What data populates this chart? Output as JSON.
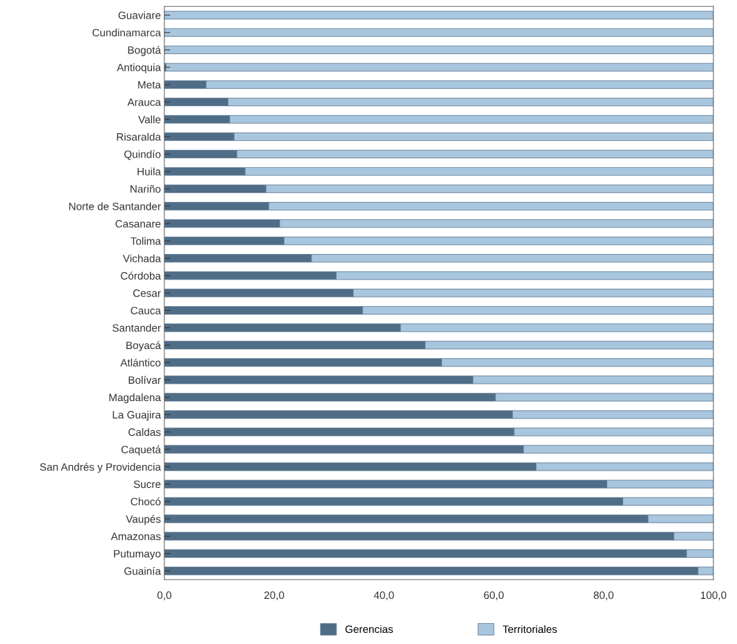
{
  "chart_data": {
    "type": "bar",
    "orientation": "horizontal",
    "stacked": true,
    "categories": [
      "Guaviare",
      "Cundinamarca",
      "Bogotá",
      "Antioquia",
      "Meta",
      "Arauca",
      "Valle",
      "Risaralda",
      "Quindío",
      "Huila",
      "Nariño",
      "Norte de Santander",
      "Casanare",
      "Tolima",
      "Vichada",
      "Córdoba",
      "Cesar",
      "Cauca",
      "Santander",
      "Boyacá",
      "Atlántico",
      "Bolívar",
      "Magdalena",
      "La Guajira",
      "Caldas",
      "Caquetá",
      "San Andrés y Providencia",
      "Sucre",
      "Chocó",
      "Vaupés",
      "Amazonas",
      "Putumayo",
      "Guainía"
    ],
    "series": [
      {
        "name": "Gerencias",
        "color": "#4f6d87",
        "values": [
          0,
          0,
          0,
          0.3,
          7.6,
          11.6,
          11.9,
          12.7,
          13.2,
          14.7,
          18.5,
          19.0,
          21.0,
          21.8,
          26.8,
          31.3,
          34.4,
          36.1,
          43.0,
          47.5,
          50.5,
          56.2,
          60.3,
          63.4,
          63.7,
          65.4,
          67.7,
          80.6,
          83.5,
          88.1,
          92.8,
          95.1,
          97.2
        ]
      },
      {
        "name": "Territoriales",
        "color": "#a8c6de",
        "values": [
          100,
          100,
          100,
          99.7,
          92.4,
          88.4,
          88.1,
          87.3,
          86.8,
          85.3,
          81.5,
          81.0,
          79.0,
          78.2,
          73.2,
          68.7,
          65.6,
          63.9,
          57.0,
          52.5,
          49.5,
          43.8,
          39.7,
          36.6,
          36.3,
          34.6,
          32.3,
          19.4,
          16.5,
          11.9,
          7.2,
          4.9,
          2.8
        ]
      }
    ],
    "xlim": [
      0,
      100
    ],
    "xticks": [
      {
        "value": 0,
        "label": "0,0"
      },
      {
        "value": 20,
        "label": "20,0"
      },
      {
        "value": 40,
        "label": "40,0"
      },
      {
        "value": 60,
        "label": "60,0"
      },
      {
        "value": 80,
        "label": "80,0"
      },
      {
        "value": 100,
        "label": "100,0"
      }
    ],
    "grid": false,
    "legend": "bottom"
  }
}
